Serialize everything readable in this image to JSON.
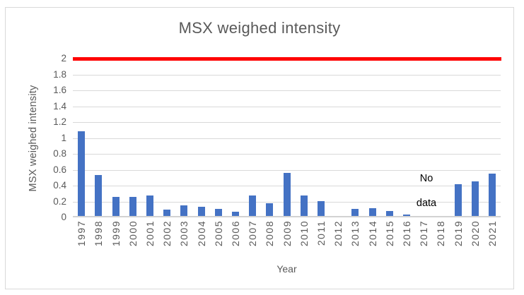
{
  "chart_data": {
    "type": "bar",
    "title": "MSX weighed intensity",
    "xlabel": "Year",
    "ylabel": "MSX weighed intensity",
    "categories": [
      "1997",
      "1998",
      "1999",
      "2000",
      "2001",
      "2002",
      "2003",
      "2004",
      "2005",
      "2006",
      "2007",
      "2008",
      "2009",
      "2010",
      "2011",
      "2012",
      "2013",
      "2014",
      "2015",
      "2016",
      "2017",
      "2018",
      "2019",
      "2020",
      "2021"
    ],
    "values": [
      1.07,
      0.52,
      0.24,
      0.24,
      0.26,
      0.08,
      0.13,
      0.12,
      0.09,
      0.05,
      0.26,
      0.16,
      0.54,
      0.26,
      0.19,
      0,
      0.09,
      0.1,
      0.06,
      0.02,
      null,
      null,
      0.4,
      0.44,
      0.53
    ],
    "ylim": [
      0,
      2
    ],
    "ytick_labels": [
      "2",
      "1.8",
      "1.6",
      "1.4",
      "1.2",
      "1",
      "0.8",
      "0.6",
      "0.4",
      "0.2",
      "0"
    ],
    "ytick_values": [
      2,
      1.8,
      1.6,
      1.4,
      1.2,
      1,
      0.8,
      0.6,
      0.4,
      0.2,
      0
    ],
    "grid": true,
    "legend": "none",
    "bar_color": "#4472C4",
    "gridline_color": "#D9D9D9",
    "text_color": "#595959",
    "reference_line": {
      "value": 2,
      "color": "#FF0000"
    },
    "annotation": {
      "line1": "No",
      "line2": "data",
      "covers_categories": [
        "2017",
        "2018"
      ],
      "color": "#000000"
    }
  }
}
